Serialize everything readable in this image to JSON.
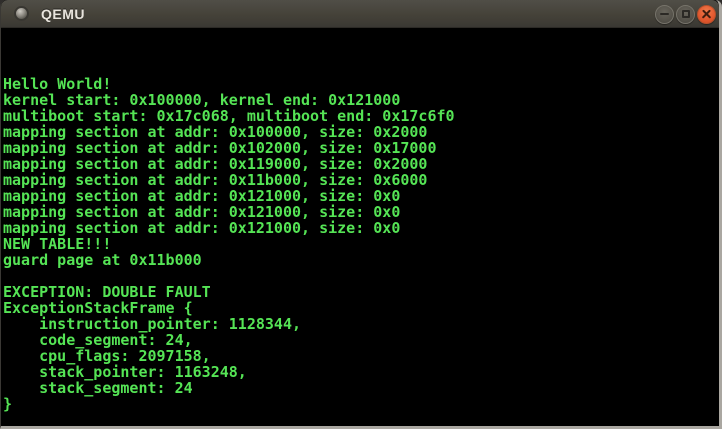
{
  "window": {
    "title": "QEMU",
    "controls": {
      "minimize_label": "minimize",
      "maximize_label": "maximize",
      "close_label": "close"
    }
  },
  "colors": {
    "terminal_background": "#000000",
    "terminal_text_green": "#55e455",
    "titlebar_gradient_top": "#504e47",
    "titlebar_gradient_bottom": "#3a3833",
    "close_button_orange": "#e2572e",
    "window_border_light": "#aaa7a1"
  },
  "icons": {
    "window_icon": "qemu-window-icon",
    "minimize": "minimize-icon",
    "maximize": "maximize-icon",
    "close": "close-icon"
  },
  "terminal": {
    "columns": 80,
    "rows": 25,
    "lines": [
      "",
      "",
      "",
      "Hello World!",
      "kernel start: 0x100000, kernel end: 0x121000",
      "multiboot start: 0x17c068, multiboot end: 0x17c6f0",
      "mapping section at addr: 0x100000, size: 0x2000",
      "mapping section at addr: 0x102000, size: 0x17000",
      "mapping section at addr: 0x119000, size: 0x2000",
      "mapping section at addr: 0x11b000, size: 0x6000",
      "mapping section at addr: 0x121000, size: 0x0",
      "mapping section at addr: 0x121000, size: 0x0",
      "mapping section at addr: 0x121000, size: 0x0",
      "NEW TABLE!!!",
      "guard page at 0x11b000",
      "",
      "EXCEPTION: DOUBLE FAULT",
      "ExceptionStackFrame {",
      "    instruction_pointer: 1128344,",
      "    code_segment: 24,",
      "    cpu_flags: 2097158,",
      "    stack_pointer: 1163248,",
      "    stack_segment: 24",
      "}"
    ]
  }
}
